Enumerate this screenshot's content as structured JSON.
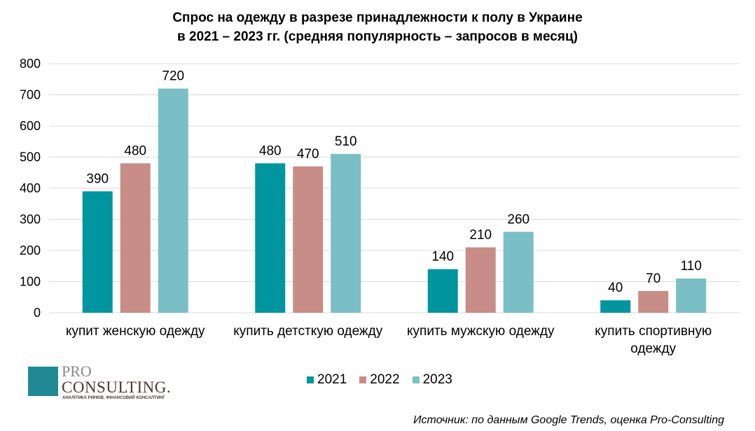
{
  "chart_data": {
    "type": "bar",
    "title_lines": [
      "Спрос на одежду в разрезе принадлежности к полу в Украине",
      "в 2021 – 2023 гг. (средняя популярность – запросов в месяц)"
    ],
    "categories": [
      [
        "купит женскую одежду"
      ],
      [
        "купить детсткую одежду"
      ],
      [
        "купить мужскую одежду"
      ],
      [
        "купить спортивную",
        "одежду"
      ]
    ],
    "series": [
      {
        "name": "2021",
        "color": "#00959F",
        "values": [
          390,
          480,
          140,
          40
        ]
      },
      {
        "name": "2022",
        "color": "#C88D86",
        "values": [
          480,
          470,
          210,
          70
        ]
      },
      {
        "name": "2023",
        "color": "#7BBFC6",
        "values": [
          720,
          510,
          260,
          110
        ]
      }
    ],
    "ylim": [
      0,
      800
    ],
    "yticks": [
      "0",
      "100",
      "200",
      "300",
      "400",
      "500",
      "600",
      "700",
      "800"
    ],
    "grid": true,
    "legend_position": "bottom"
  },
  "logo": {
    "line1": "PRO",
    "line2": "CONSULTING.",
    "tagline": "АНАЛІТИКА РИНКІВ. ФІНАНСОВИЙ КОНСАЛТИНГ"
  },
  "source": "Источник: по данным Google Trends, оценка Pro-Consulting"
}
